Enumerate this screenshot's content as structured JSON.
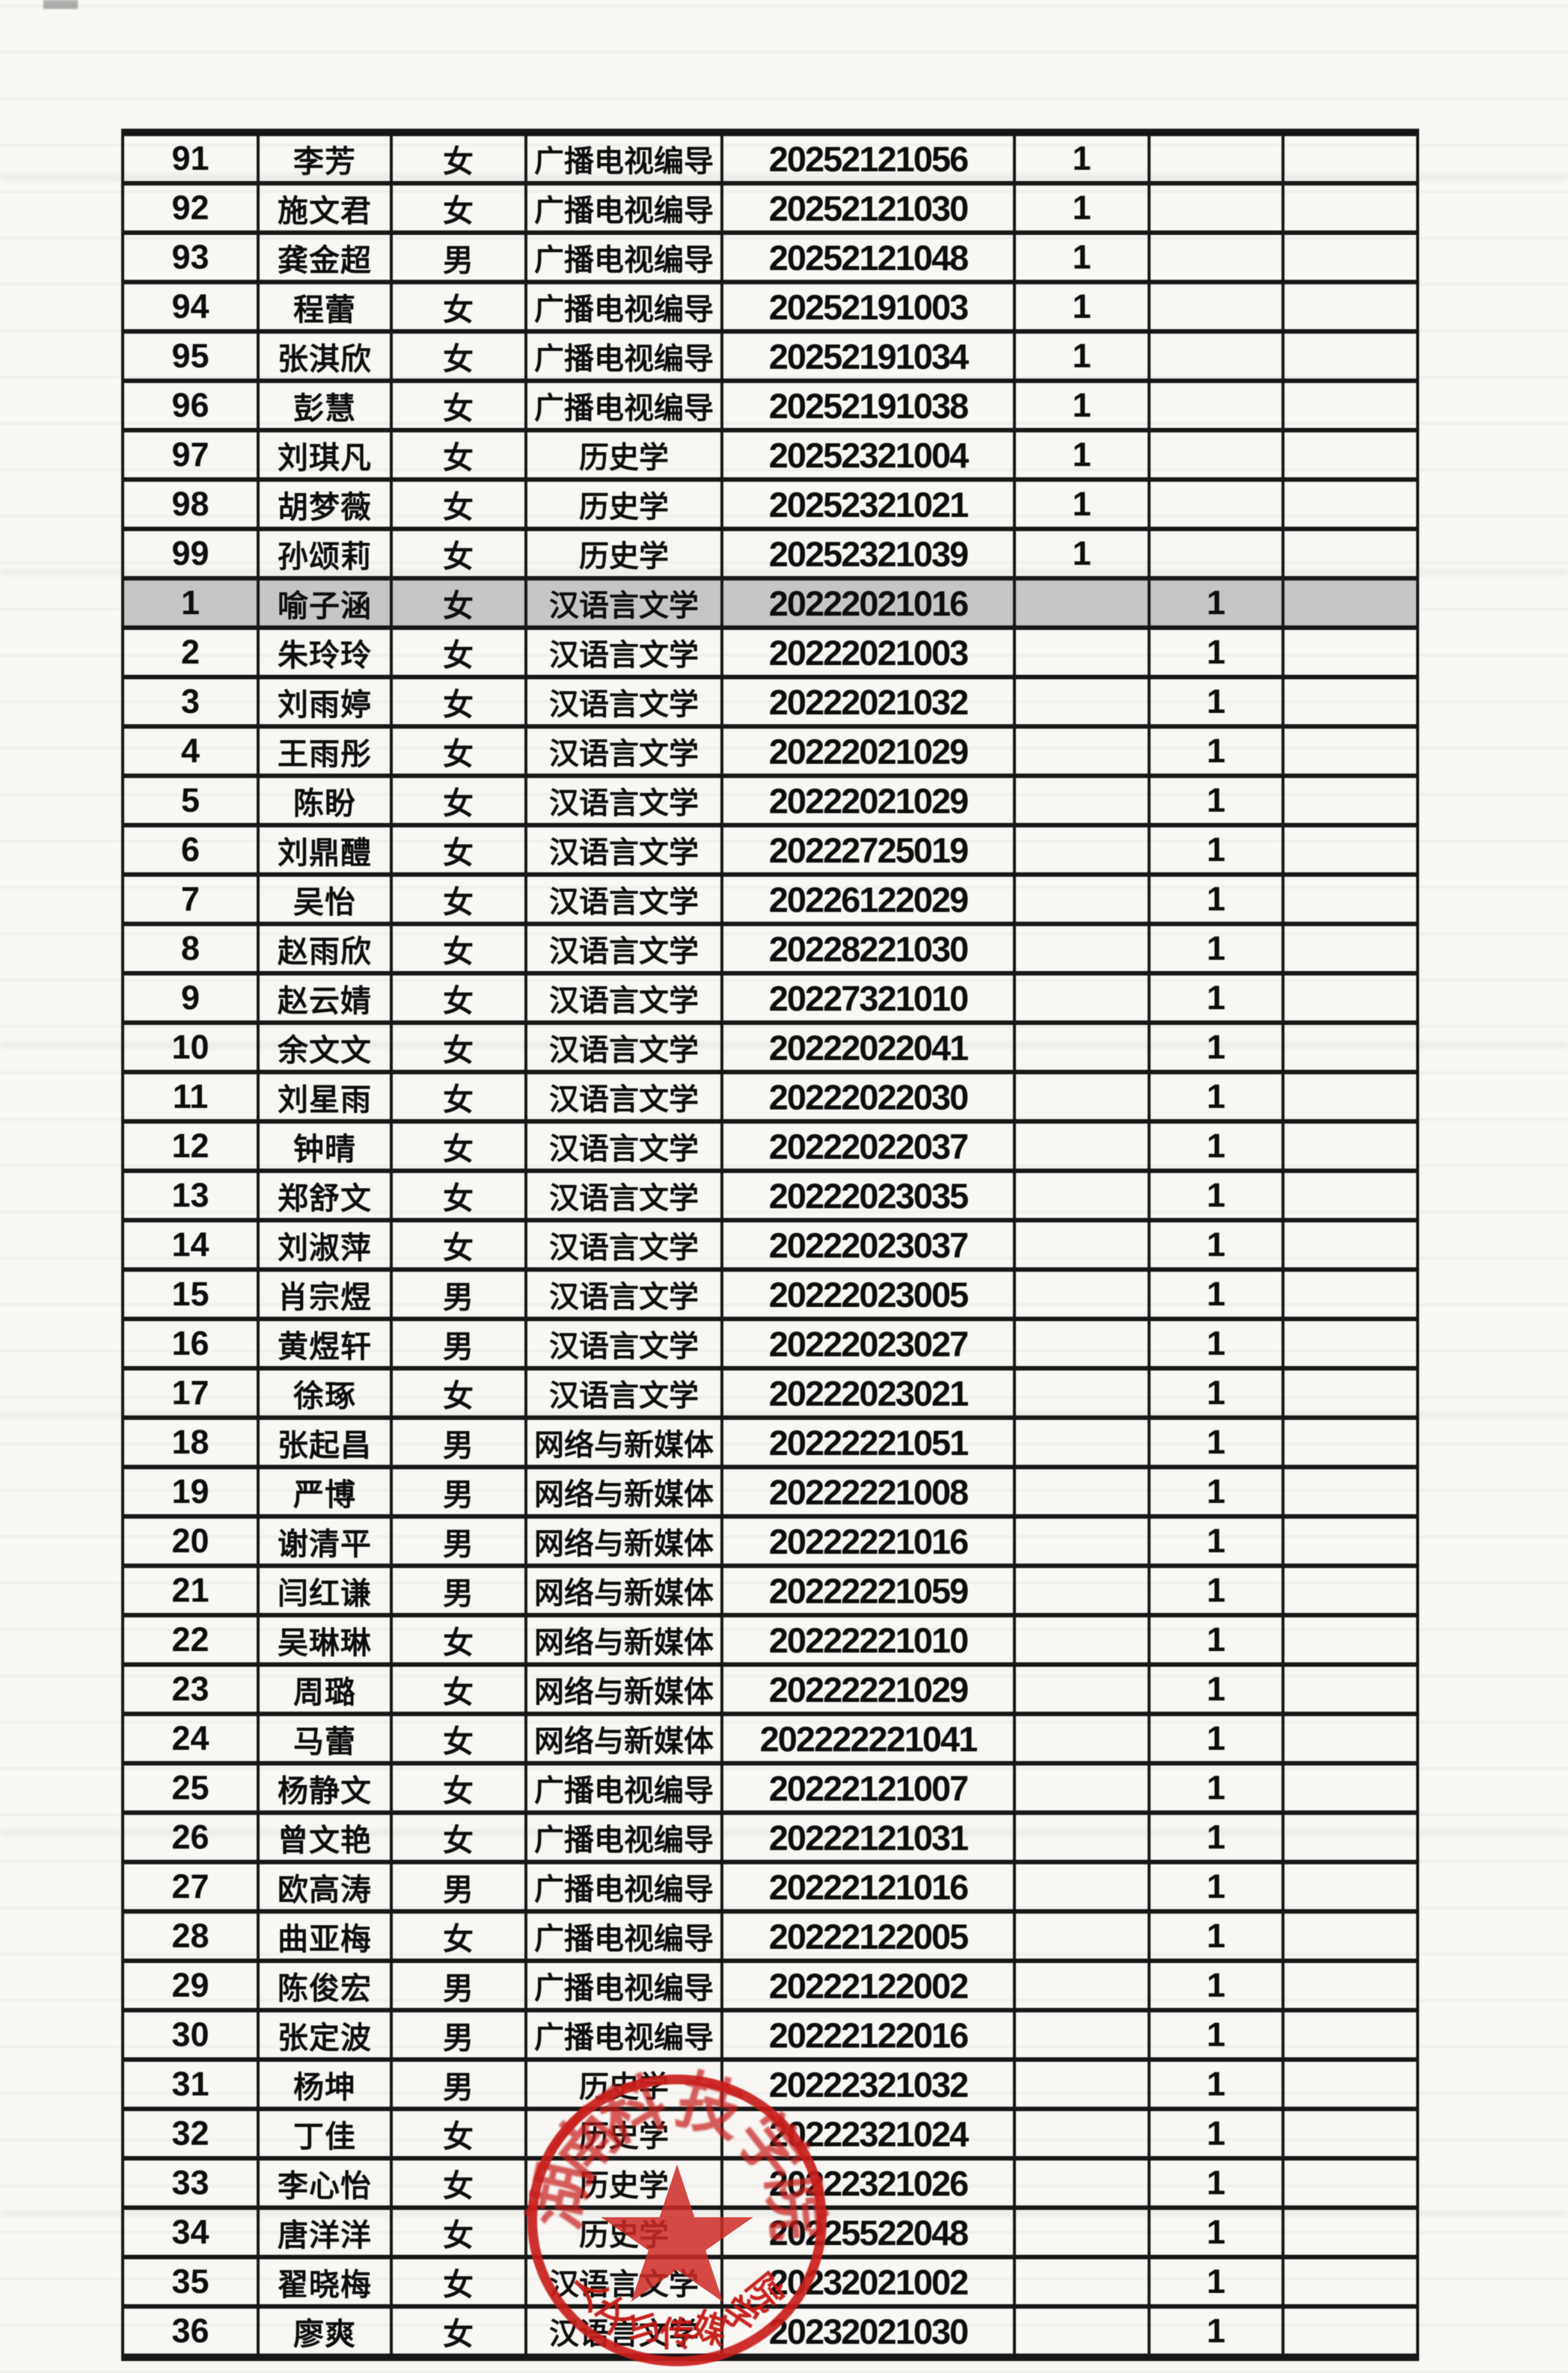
{
  "page": {
    "background_color": "#f8f7f4",
    "table_border_color": "#171717",
    "highlight_color": "#c6c6c6"
  },
  "table": {
    "highlight_row_index": 9,
    "rows": [
      [
        "91",
        "李芳",
        "女",
        "广播电视编导",
        "20252121056",
        "1",
        "",
        ""
      ],
      [
        "92",
        "施文君",
        "女",
        "广播电视编导",
        "20252121030",
        "1",
        "",
        ""
      ],
      [
        "93",
        "龚金超",
        "男",
        "广播电视编导",
        "20252121048",
        "1",
        "",
        ""
      ],
      [
        "94",
        "程蕾",
        "女",
        "广播电视编导",
        "20252191003",
        "1",
        "",
        ""
      ],
      [
        "95",
        "张淇欣",
        "女",
        "广播电视编导",
        "20252191034",
        "1",
        "",
        ""
      ],
      [
        "96",
        "彭慧",
        "女",
        "广播电视编导",
        "20252191038",
        "1",
        "",
        ""
      ],
      [
        "97",
        "刘琪凡",
        "女",
        "历史学",
        "20252321004",
        "1",
        "",
        ""
      ],
      [
        "98",
        "胡梦薇",
        "女",
        "历史学",
        "20252321021",
        "1",
        "",
        ""
      ],
      [
        "99",
        "孙颂莉",
        "女",
        "历史学",
        "20252321039",
        "1",
        "",
        ""
      ],
      [
        "1",
        "喻子涵",
        "女",
        "汉语言文学",
        "20222021016",
        "",
        "1",
        ""
      ],
      [
        "2",
        "朱玲玲",
        "女",
        "汉语言文学",
        "20222021003",
        "",
        "1",
        ""
      ],
      [
        "3",
        "刘雨婷",
        "女",
        "汉语言文学",
        "20222021032",
        "",
        "1",
        ""
      ],
      [
        "4",
        "王雨彤",
        "女",
        "汉语言文学",
        "20222021029",
        "",
        "1",
        ""
      ],
      [
        "5",
        "陈盼",
        "女",
        "汉语言文学",
        "20222021029",
        "",
        "1",
        ""
      ],
      [
        "6",
        "刘鼎醴",
        "女",
        "汉语言文学",
        "20222725019",
        "",
        "1",
        ""
      ],
      [
        "7",
        "吴怡",
        "女",
        "汉语言文学",
        "20226122029",
        "",
        "1",
        ""
      ],
      [
        "8",
        "赵雨欣",
        "女",
        "汉语言文学",
        "20228221030",
        "",
        "1",
        ""
      ],
      [
        "9",
        "赵云婧",
        "女",
        "汉语言文学",
        "20227321010",
        "",
        "1",
        ""
      ],
      [
        "10",
        "余文文",
        "女",
        "汉语言文学",
        "20222022041",
        "",
        "1",
        ""
      ],
      [
        "11",
        "刘星雨",
        "女",
        "汉语言文学",
        "20222022030",
        "",
        "1",
        ""
      ],
      [
        "12",
        "钟晴",
        "女",
        "汉语言文学",
        "20222022037",
        "",
        "1",
        ""
      ],
      [
        "13",
        "郑舒文",
        "女",
        "汉语言文学",
        "20222023035",
        "",
        "1",
        ""
      ],
      [
        "14",
        "刘淑萍",
        "女",
        "汉语言文学",
        "20222023037",
        "",
        "1",
        ""
      ],
      [
        "15",
        "肖宗煜",
        "男",
        "汉语言文学",
        "20222023005",
        "",
        "1",
        ""
      ],
      [
        "16",
        "黄煜轩",
        "男",
        "汉语言文学",
        "20222023027",
        "",
        "1",
        ""
      ],
      [
        "17",
        "徐琢",
        "女",
        "汉语言文学",
        "20222023021",
        "",
        "1",
        ""
      ],
      [
        "18",
        "张起昌",
        "男",
        "网络与新媒体",
        "20222221051",
        "",
        "1",
        ""
      ],
      [
        "19",
        "严博",
        "男",
        "网络与新媒体",
        "20222221008",
        "",
        "1",
        ""
      ],
      [
        "20",
        "谢清平",
        "男",
        "网络与新媒体",
        "20222221016",
        "",
        "1",
        ""
      ],
      [
        "21",
        "闫红谦",
        "男",
        "网络与新媒体",
        "20222221059",
        "",
        "1",
        ""
      ],
      [
        "22",
        "吴琳琳",
        "女",
        "网络与新媒体",
        "20222221010",
        "",
        "1",
        ""
      ],
      [
        "23",
        "周璐",
        "女",
        "网络与新媒体",
        "20222221029",
        "",
        "1",
        ""
      ],
      [
        "24",
        "马蕾",
        "女",
        "网络与新媒体",
        "202222221041",
        "",
        "1",
        ""
      ],
      [
        "25",
        "杨静文",
        "女",
        "广播电视编导",
        "20222121007",
        "",
        "1",
        ""
      ],
      [
        "26",
        "曾文艳",
        "女",
        "广播电视编导",
        "20222121031",
        "",
        "1",
        ""
      ],
      [
        "27",
        "欧高涛",
        "男",
        "广播电视编导",
        "20222121016",
        "",
        "1",
        ""
      ],
      [
        "28",
        "曲亚梅",
        "女",
        "广播电视编导",
        "20222122005",
        "",
        "1",
        ""
      ],
      [
        "29",
        "陈俊宏",
        "男",
        "广播电视编导",
        "20222122002",
        "",
        "1",
        ""
      ],
      [
        "30",
        "张定波",
        "男",
        "广播电视编导",
        "20222122016",
        "",
        "1",
        ""
      ],
      [
        "31",
        "杨坤",
        "男",
        "历史学",
        "20222321032",
        "",
        "1",
        ""
      ],
      [
        "32",
        "丁佳",
        "女",
        "历史学",
        "20222321024",
        "",
        "1",
        ""
      ],
      [
        "33",
        "李心怡",
        "女",
        "历史学",
        "20222321026",
        "",
        "1",
        ""
      ],
      [
        "34",
        "唐洋洋",
        "女",
        "历史学",
        "20225522048",
        "",
        "1",
        ""
      ],
      [
        "35",
        "翟晓梅",
        "女",
        "汉语言文学",
        "20232021002",
        "",
        "1",
        ""
      ],
      [
        "36",
        "廖爽",
        "女",
        "汉语言文学",
        "20232021030",
        "",
        "1",
        ""
      ]
    ]
  },
  "stamp": {
    "color": "#c91d1a",
    "inner_arc_text": "湖南科技学院",
    "bottom_arc_text": "人文与传媒学院",
    "star_icon": "red-star"
  }
}
